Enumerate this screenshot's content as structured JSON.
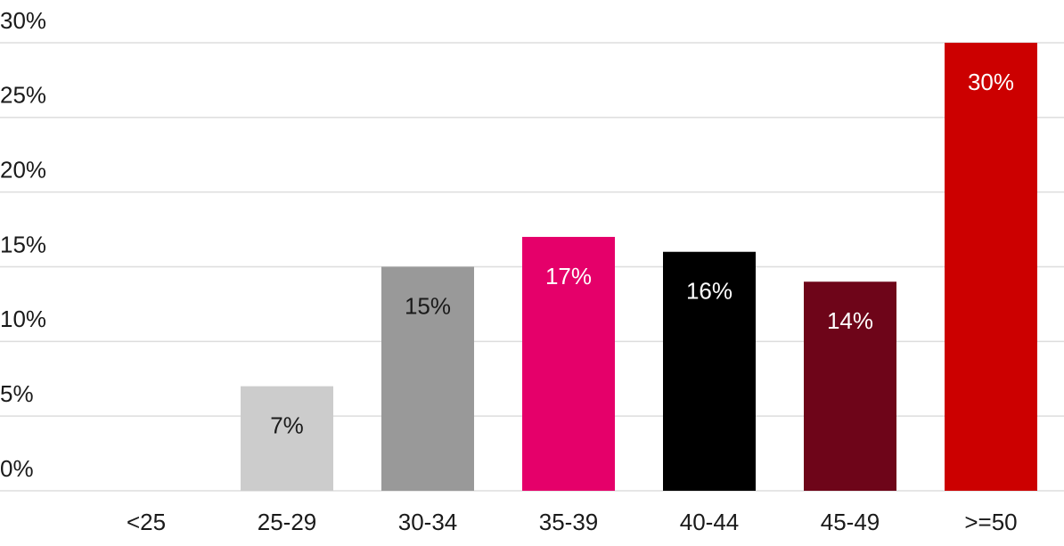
{
  "chart_data": {
    "type": "bar",
    "categories": [
      "<25",
      "25-29",
      "30-34",
      "35-39",
      "40-44",
      "45-49",
      ">=50"
    ],
    "values": [
      0,
      7,
      15,
      17,
      16,
      14,
      30
    ],
    "value_labels": [
      null,
      "7%",
      "15%",
      "17%",
      "16%",
      "14%",
      "30%"
    ],
    "colors": [
      "#cccccc",
      "#cccccc",
      "#999999",
      "#e5006a",
      "#000000",
      "#6e0519",
      "#cc0000"
    ],
    "ylim": [
      0,
      30
    ],
    "yticks": [
      {
        "value": 0,
        "label": "0%"
      },
      {
        "value": 5,
        "label": "5%"
      },
      {
        "value": 10,
        "label": "10%"
      },
      {
        "value": 15,
        "label": "15%"
      },
      {
        "value": 20,
        "label": "20%"
      },
      {
        "value": 25,
        "label": "25%"
      },
      {
        "value": 30,
        "label": "30%"
      }
    ],
    "grid": true
  }
}
